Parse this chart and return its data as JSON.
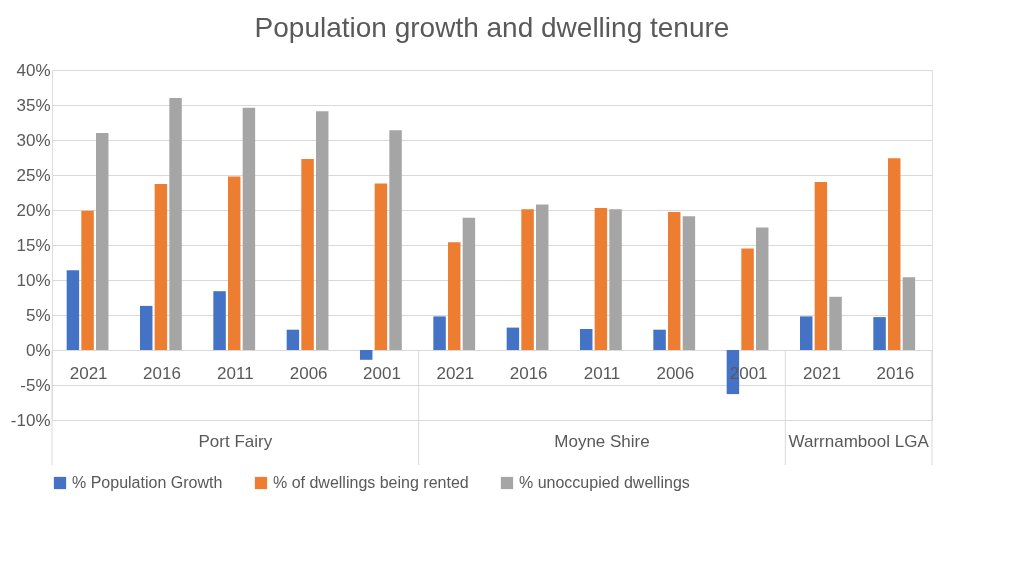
{
  "chart_data": {
    "type": "bar",
    "title": "Population growth and dwelling tenure",
    "categories": [
      "2021",
      "2016",
      "2011",
      "2006",
      "2001",
      "2021",
      "2016",
      "2011",
      "2006",
      "2001",
      "2021",
      "2016"
    ],
    "series": [
      {
        "name": "% Population Growth",
        "color": "#4472c4",
        "values": [
          11.4,
          6.3,
          8.4,
          2.9,
          -1.4,
          4.8,
          3.2,
          3.0,
          2.9,
          -6.3,
          4.8,
          4.7
        ]
      },
      {
        "name": "% of dwellings being rented",
        "color": "#ed7d31",
        "values": [
          19.9,
          23.7,
          24.8,
          27.3,
          23.8,
          15.4,
          20.1,
          20.3,
          19.7,
          14.5,
          24.0,
          27.4
        ]
      },
      {
        "name": "% unoccupied dwellings",
        "color": "#a5a5a5",
        "values": [
          31.0,
          36.0,
          34.6,
          34.1,
          31.4,
          18.9,
          20.8,
          20.1,
          19.1,
          17.5,
          7.6,
          10.4
        ]
      }
    ],
    "annotations": [
      "Port Fairy",
      "Moyne Shire",
      "Warrnambool LGA"
    ],
    "ylim": [
      -10,
      40
    ],
    "yticks": [
      {
        "value": -10,
        "label": "-10%"
      },
      {
        "value": -5,
        "label": "-5%"
      },
      {
        "value": 0,
        "label": "0%"
      },
      {
        "value": 5,
        "label": "5%"
      },
      {
        "value": 10,
        "label": "10%"
      },
      {
        "value": 15,
        "label": "15%"
      },
      {
        "value": 20,
        "label": "20%"
      },
      {
        "value": 25,
        "label": "25%"
      },
      {
        "value": 30,
        "label": "30%"
      },
      {
        "value": 35,
        "label": "35%"
      },
      {
        "value": 40,
        "label": "40%"
      }
    ],
    "grid": "y",
    "legend": "bottom"
  }
}
